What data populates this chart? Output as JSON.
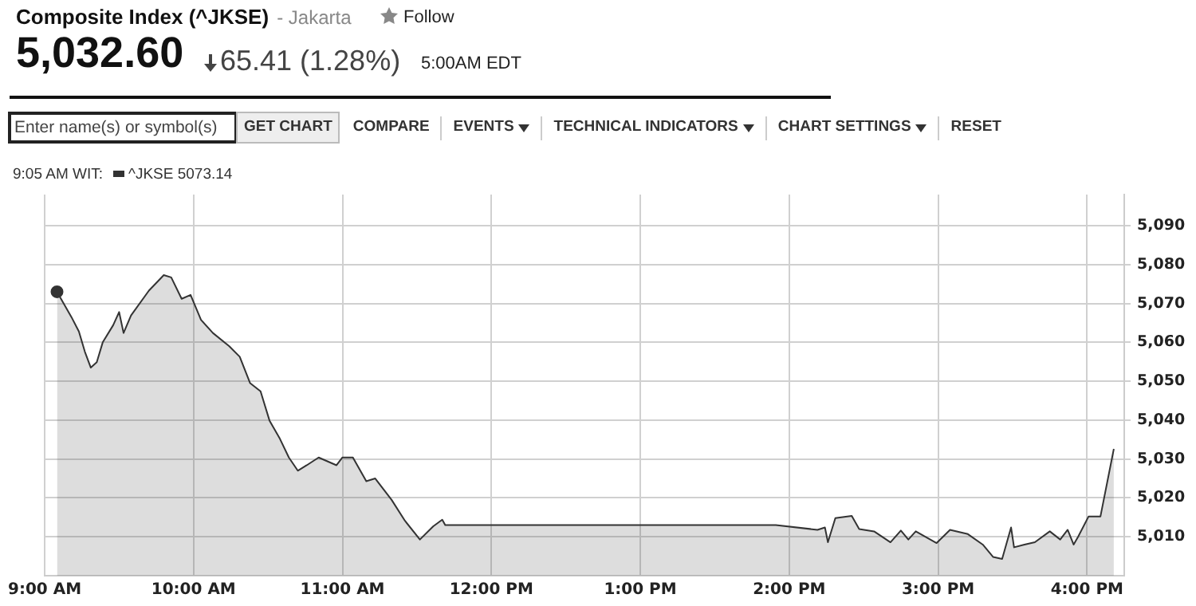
{
  "chart_data": {
    "type": "area",
    "title": "Composite Index (^JKSE)",
    "subtitle": "- Jakarta",
    "annotations": [
      "Follow",
      "5,032.60",
      "65.41",
      "(1.28%)",
      "5:00AM EDT",
      "Enter name(s) or symbol(s)",
      "GET CHART",
      "COMPARE",
      "EVENTS",
      "TECHNICAL INDICATORS",
      "CHART SETTINGS",
      "RESET",
      "9:05 AM WIT:",
      "5073.14"
    ],
    "series": [
      {
        "name": "^JKSE",
        "color": "#333333",
        "x": [
          9.083,
          9.18,
          9.23,
          9.27,
          9.31,
          9.35,
          9.39,
          9.46,
          9.5,
          9.53,
          9.58,
          9.7,
          9.8,
          9.85,
          9.92,
          9.98,
          10.05,
          10.13,
          10.24,
          10.31,
          10.38,
          10.45,
          10.51,
          10.58,
          10.64,
          10.7,
          10.76,
          10.84,
          10.96,
          11,
          11.07,
          11.16,
          11.22,
          11.33,
          11.42,
          11.52,
          11.61,
          11.67,
          11.69,
          13.91,
          14.19,
          14.24,
          14.26,
          14.31,
          14.42,
          14.47,
          14.57,
          14.68,
          14.75,
          14.8,
          14.85,
          14.99,
          15.08,
          15.2,
          15.3,
          15.37,
          15.43,
          15.49,
          15.51,
          15.58,
          15.65,
          15.75,
          15.82,
          15.87,
          15.91,
          15.94,
          16.01,
          16.09,
          16.18
        ],
        "values": [
          5073,
          5066.5,
          5062.8,
          5057.6,
          5053.5,
          5054.9,
          5060,
          5064.4,
          5067.8,
          5062.4,
          5066.9,
          5073.3,
          5077.3,
          5076.7,
          5071.2,
          5072.2,
          5065.8,
          5062.4,
          5059,
          5056.3,
          5049.5,
          5047.4,
          5039.9,
          5035.2,
          5030.4,
          5027,
          5028.4,
          5030.4,
          5028.4,
          5030.4,
          5030.4,
          5024.3,
          5025,
          5019.5,
          5014.1,
          5009.3,
          5012.7,
          5014.4,
          5013,
          5013,
          5011.8,
          5012.4,
          5008.6,
          5014.8,
          5015.4,
          5012,
          5011.4,
          5008.6,
          5011.6,
          5009.3,
          5011.4,
          5008.4,
          5011.8,
          5010.7,
          5008,
          5004.8,
          5004.3,
          5012.4,
          5007.3,
          5008,
          5008.6,
          5011.4,
          5009.3,
          5011.8,
          5008,
          5010,
          5015.2,
          5015.2,
          5032.6
        ]
      }
    ],
    "xlim": [
      9,
      16.25
    ],
    "xticks": [
      {
        "value": 9,
        "label": "9:00 AM"
      },
      {
        "value": 10,
        "label": "10:00 AM"
      },
      {
        "value": 11,
        "label": "11:00 AM"
      },
      {
        "value": 12,
        "label": "12:00 PM"
      },
      {
        "value": 13,
        "label": "1:00 PM"
      },
      {
        "value": 14,
        "label": "2:00 PM"
      },
      {
        "value": 15,
        "label": "3:00 PM"
      },
      {
        "value": 16,
        "label": "4:00 PM"
      }
    ],
    "ylim": [
      5000,
      5098
    ],
    "yticks": [
      {
        "value": 5010,
        "label": "5,010"
      },
      {
        "value": 5020,
        "label": "5,020"
      },
      {
        "value": 5030,
        "label": "5,030"
      },
      {
        "value": 5040,
        "label": "5,040"
      },
      {
        "value": 5050,
        "label": "5,050"
      },
      {
        "value": 5060,
        "label": "5,060"
      },
      {
        "value": 5070,
        "label": "5,070"
      },
      {
        "value": 5080,
        "label": "5,080"
      },
      {
        "value": 5090,
        "label": "5,090"
      }
    ],
    "grid": true,
    "legend": "top left",
    "marker": "none"
  }
}
